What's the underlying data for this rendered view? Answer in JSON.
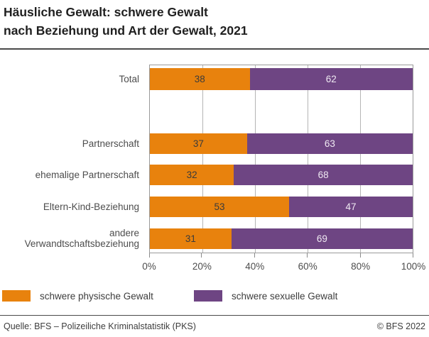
{
  "title": {
    "line1": "Häusliche Gewalt: schwere Gewalt",
    "line2": "nach Beziehung und Art der Gewalt, 2021"
  },
  "colors": {
    "physical": "#E8820D",
    "sexual": "#6E4583",
    "value_text_on_physical": "#3B3B3B",
    "value_text_on_sexual": "#EFE9F2",
    "gridline": "#B5B5B5",
    "plot_border": "#9A9A9A",
    "axis_text": "#4D4D4D"
  },
  "chart_data": {
    "type": "bar",
    "orientation": "horizontal",
    "stacked": true,
    "unit": "%",
    "title": "Häusliche Gewalt: schwere Gewalt nach Beziehung und Art der Gewalt, 2021",
    "categories": [
      "Total",
      "Partnerschaft",
      "ehemalige Partnerschaft",
      "Eltern-Kind-Beziehung",
      "andere Verwandtschaftsbeziehung"
    ],
    "series": [
      {
        "name": "schwere physische Gewalt",
        "color": "#E8820D",
        "values": [
          38,
          37,
          32,
          53,
          31
        ]
      },
      {
        "name": "schwere sexuelle Gewalt",
        "color": "#6E4583",
        "values": [
          62,
          63,
          68,
          47,
          69
        ]
      }
    ],
    "xlim": [
      0,
      100
    ],
    "x_ticks": [
      "0%",
      "20%",
      "40%",
      "60%",
      "80%",
      "100%"
    ],
    "grid": "vertical, 20% steps",
    "legend_position": "bottom"
  },
  "footer": {
    "source": "Quelle: BFS – Polizeiliche Kriminalstatistik (PKS)",
    "copyright": "© BFS 2022"
  }
}
